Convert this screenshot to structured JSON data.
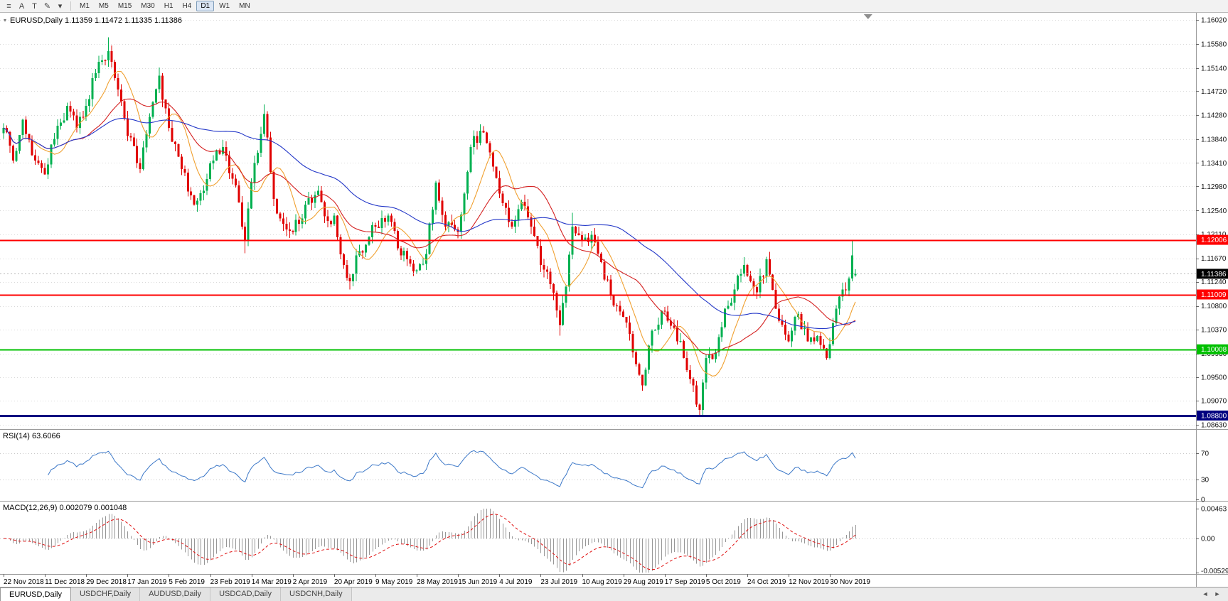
{
  "toolbar": {
    "icons": [
      {
        "name": "chart-list-icon",
        "glyph": "≡"
      },
      {
        "name": "cursor-tool-icon",
        "glyph": "A"
      },
      {
        "name": "text-tool-icon",
        "glyph": "T"
      },
      {
        "name": "draw-tool-icon",
        "glyph": "✎"
      },
      {
        "name": "draw-tool-dropdown-icon",
        "glyph": "▾"
      }
    ],
    "timeframes": [
      {
        "label": "M1",
        "active": false
      },
      {
        "label": "M5",
        "active": false
      },
      {
        "label": "M15",
        "active": false
      },
      {
        "label": "M30",
        "active": false
      },
      {
        "label": "H1",
        "active": false
      },
      {
        "label": "H4",
        "active": false
      },
      {
        "label": "D1",
        "active": true
      },
      {
        "label": "W1",
        "active": false
      },
      {
        "label": "MN",
        "active": false
      }
    ]
  },
  "chart": {
    "title_line": "EURUSD,Daily  1.11359 1.11472 1.11335 1.11386",
    "menu_arrow": "▾"
  },
  "chart_data": {
    "type": "candlestick",
    "symbol": "EURUSD",
    "timeframe": "Daily",
    "last_candle": {
      "open": 1.11359,
      "high": 1.11472,
      "low": 1.11335,
      "close": 1.11386
    },
    "y_axis": {
      "min": 1.0863,
      "max": 1.1602,
      "ticks": [
        "1.16020",
        "1.15580",
        "1.15140",
        "1.14720",
        "1.14280",
        "1.13840",
        "1.13410",
        "1.12980",
        "1.12540",
        "1.12110",
        "1.11670",
        "1.11240",
        "1.10800",
        "1.10370",
        "1.09930",
        "1.09500",
        "1.09070",
        "1.08630"
      ]
    },
    "x_axis": {
      "bars_per_label": 13,
      "labels": [
        "22 Nov 2018",
        "11 Dec 2018",
        "29 Dec 2018",
        "17 Jan 2019",
        "5 Feb 2019",
        "23 Feb 2019",
        "14 Mar 2019",
        "2 Apr 2019",
        "20 Apr 2019",
        "9 May 2019",
        "28 May 2019",
        "15 Jun 2019",
        "4 Jul 2019",
        "23 Jul 2019",
        "10 Aug 2019",
        "29 Aug 2019",
        "17 Sep 2019",
        "5 Oct 2019",
        "24 Oct 2019",
        "12 Nov 2019",
        "30 Nov 2019"
      ]
    },
    "price_anchors": [
      [
        0,
        1.1405
      ],
      [
        3,
        1.1345
      ],
      [
        6,
        1.142
      ],
      [
        9,
        1.1355
      ],
      [
        13,
        1.132
      ],
      [
        16,
        1.1385
      ],
      [
        20,
        1.1445
      ],
      [
        23,
        1.1405
      ],
      [
        26,
        1.1445
      ],
      [
        29,
        1.1505
      ],
      [
        33,
        1.1545
      ],
      [
        36,
        1.1475
      ],
      [
        39,
        1.139
      ],
      [
        43,
        1.133
      ],
      [
        46,
        1.1425
      ],
      [
        49,
        1.15
      ],
      [
        52,
        1.1405
      ],
      [
        56,
        1.133
      ],
      [
        60,
        1.1265
      ],
      [
        63,
        1.129
      ],
      [
        65,
        1.134
      ],
      [
        69,
        1.137
      ],
      [
        73,
        1.13
      ],
      [
        76,
        1.12
      ],
      [
        78,
        1.1305
      ],
      [
        82,
        1.143
      ],
      [
        85,
        1.1275
      ],
      [
        88,
        1.123
      ],
      [
        91,
        1.1215
      ],
      [
        95,
        1.1265
      ],
      [
        99,
        1.129
      ],
      [
        102,
        1.1235
      ],
      [
        104,
        1.1245
      ],
      [
        107,
        1.1155
      ],
      [
        109,
        1.1125
      ],
      [
        112,
        1.118
      ],
      [
        115,
        1.1205
      ],
      [
        117,
        1.1225
      ],
      [
        121,
        1.1245
      ],
      [
        124,
        1.1185
      ],
      [
        127,
        1.1165
      ],
      [
        130,
        1.1145
      ],
      [
        133,
        1.1175
      ],
      [
        136,
        1.1305
      ],
      [
        139,
        1.1225
      ],
      [
        143,
        1.1215
      ],
      [
        147,
        1.137
      ],
      [
        150,
        1.14
      ],
      [
        153,
        1.136
      ],
      [
        156,
        1.1285
      ],
      [
        160,
        1.1225
      ],
      [
        163,
        1.127
      ],
      [
        166,
        1.1225
      ],
      [
        169,
        1.1155
      ],
      [
        172,
        1.112
      ],
      [
        175,
        1.1045
      ],
      [
        177,
        1.1115
      ],
      [
        179,
        1.1225
      ],
      [
        182,
        1.12
      ],
      [
        185,
        1.121
      ],
      [
        188,
        1.116
      ],
      [
        191,
        1.11
      ],
      [
        195,
        1.106
      ],
      [
        198,
        1.0995
      ],
      [
        201,
        1.0935
      ],
      [
        204,
        1.1035
      ],
      [
        208,
        1.107
      ],
      [
        211,
        1.104
      ],
      [
        214,
        1.0985
      ],
      [
        217,
        1.0935
      ],
      [
        219,
        1.089
      ],
      [
        221,
        1.0985
      ],
      [
        224,
        1.0995
      ],
      [
        227,
        1.1075
      ],
      [
        230,
        1.111
      ],
      [
        233,
        1.1155
      ],
      [
        234,
        1.1135
      ],
      [
        237,
        1.1105
      ],
      [
        240,
        1.1165
      ],
      [
        243,
        1.1075
      ],
      [
        247,
        1.1015
      ],
      [
        250,
        1.1065
      ],
      [
        253,
        1.1015
      ],
      [
        256,
        1.1025
      ],
      [
        259,
        1.0985
      ],
      [
        260,
        1.101
      ],
      [
        262,
        1.1075
      ],
      [
        264,
        1.111
      ],
      [
        266,
        1.113
      ],
      [
        267,
        1.1172
      ],
      [
        268,
        1.11386
      ]
    ],
    "wick_overrides": [
      [
        33,
        "h",
        1.157
      ],
      [
        49,
        "h",
        1.1515
      ],
      [
        76,
        "l",
        1.1176
      ],
      [
        82,
        "h",
        1.1448
      ],
      [
        109,
        "l",
        1.111
      ],
      [
        175,
        "l",
        1.1026
      ],
      [
        179,
        "h",
        1.125
      ],
      [
        201,
        "l",
        1.0925
      ],
      [
        219,
        "l",
        1.0879
      ],
      [
        267,
        "h",
        1.12
      ]
    ],
    "horizontal_lines": [
      {
        "price": 1.12006,
        "label": "1.12006",
        "color": "#ff0000",
        "width": 2
      },
      {
        "price": 1.11009,
        "label": "1.11009",
        "color": "#ff0000",
        "width": 2
      },
      {
        "price": 1.10008,
        "label": "1.10008",
        "color": "#00c000",
        "width": 2
      },
      {
        "price": 1.088,
        "label": "1.08800",
        "color": "#000080",
        "width": 3
      }
    ],
    "current_price": {
      "value": 1.11386,
      "label": "1.11386",
      "tag_color": "#000000"
    },
    "moving_averages": [
      {
        "name": "ma-fast",
        "period": 10,
        "color": "#f0a030"
      },
      {
        "name": "ma-medium",
        "period": 24,
        "color": "#d42020"
      },
      {
        "name": "ma-slow",
        "period": 60,
        "color": "#2438c8"
      }
    ],
    "colors": {
      "up": "#00b050",
      "down": "#e00000",
      "grid": "#d9d9d9",
      "axis_text": "#111111",
      "separator": "#9a9a9a"
    },
    "indicators": {
      "rsi": {
        "label": "RSI(14)",
        "value": "63.6066",
        "period": 14,
        "color": "#3c78c8",
        "levels": [
          70,
          30
        ],
        "axis_labels": [
          "70",
          "30",
          "0"
        ],
        "range": [
          0,
          100
        ]
      },
      "macd": {
        "label": "MACD(12,26,9)",
        "value": "0.002079 0.001048",
        "fast": 12,
        "slow": 26,
        "signal": 9,
        "hist_color": "#979797",
        "signal_color": "#e01010",
        "axis_labels": [
          "0.00463",
          "0.00",
          "-0.005295"
        ],
        "axis_values": [
          0.00463,
          0,
          -0.005295
        ]
      }
    },
    "shift_marker_x_bar": 272
  },
  "tabs": {
    "items": [
      {
        "label": "EURUSD,Daily",
        "active": true
      },
      {
        "label": "USDCHF,Daily",
        "active": false
      },
      {
        "label": "AUDUSD,Daily",
        "active": false
      },
      {
        "label": "USDCAD,Daily",
        "active": false
      },
      {
        "label": "USDCNH,Daily",
        "active": false
      }
    ],
    "scroll_left": "◄",
    "scroll_right": "►"
  }
}
